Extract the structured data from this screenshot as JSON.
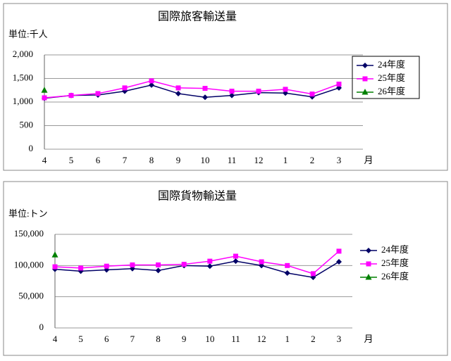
{
  "chart_data": [
    {
      "type": "line",
      "title": "国際旅客輸送量",
      "unit_label": "単位:千人",
      "x_unit": "月",
      "categories": [
        "4",
        "5",
        "6",
        "7",
        "8",
        "9",
        "10",
        "11",
        "12",
        "1",
        "2",
        "3"
      ],
      "ylim": [
        0,
        2000
      ],
      "yticks": [
        0,
        500,
        {
          "value": 1000,
          "label": "1,000"
        },
        {
          "value": 1500,
          "label": "1,500"
        },
        {
          "value": 2000,
          "label": "2,000"
        }
      ],
      "grid": true,
      "legend": "right",
      "series": [
        {
          "name": "24年度",
          "color": "#000066",
          "marker": "diamond",
          "values": [
            1080,
            1140,
            1150,
            1230,
            1360,
            1180,
            1100,
            1140,
            1200,
            1190,
            1110,
            1300
          ]
        },
        {
          "name": "25年度",
          "color": "#ff00ff",
          "marker": "square",
          "values": [
            1090,
            1140,
            1180,
            1300,
            1450,
            1300,
            1290,
            1230,
            1230,
            1270,
            1170,
            1380
          ]
        },
        {
          "name": "26年度",
          "color": "#008000",
          "marker": "triangle",
          "values": [
            1250,
            null,
            null,
            null,
            null,
            null,
            null,
            null,
            null,
            null,
            null,
            null
          ]
        }
      ]
    },
    {
      "type": "line",
      "title": "国際貨物輸送量",
      "unit_label": "単位:トン",
      "x_unit": "月",
      "categories": [
        "4",
        "5",
        "6",
        "7",
        "8",
        "9",
        "10",
        "11",
        "12",
        "1",
        "2",
        "3"
      ],
      "ylim": [
        0,
        150000
      ],
      "yticks": [
        0,
        {
          "value": 50000,
          "label": "50,000"
        },
        {
          "value": 100000,
          "label": "100,000"
        },
        {
          "value": 150000,
          "label": "150,000"
        }
      ],
      "grid": true,
      "legend": "right",
      "series": [
        {
          "name": "24年度",
          "color": "#000066",
          "marker": "diamond",
          "values": [
            94000,
            91000,
            93000,
            95000,
            92000,
            100000,
            99000,
            107000,
            100000,
            88000,
            81000,
            106000
          ]
        },
        {
          "name": "25年度",
          "color": "#ff00ff",
          "marker": "square",
          "values": [
            98000,
            96000,
            99000,
            101000,
            101000,
            102000,
            107000,
            115000,
            106000,
            100000,
            87000,
            123000
          ]
        },
        {
          "name": "26年度",
          "color": "#008000",
          "marker": "triangle",
          "values": [
            117000,
            null,
            null,
            null,
            null,
            null,
            null,
            null,
            null,
            null,
            null,
            null
          ]
        }
      ]
    }
  ]
}
